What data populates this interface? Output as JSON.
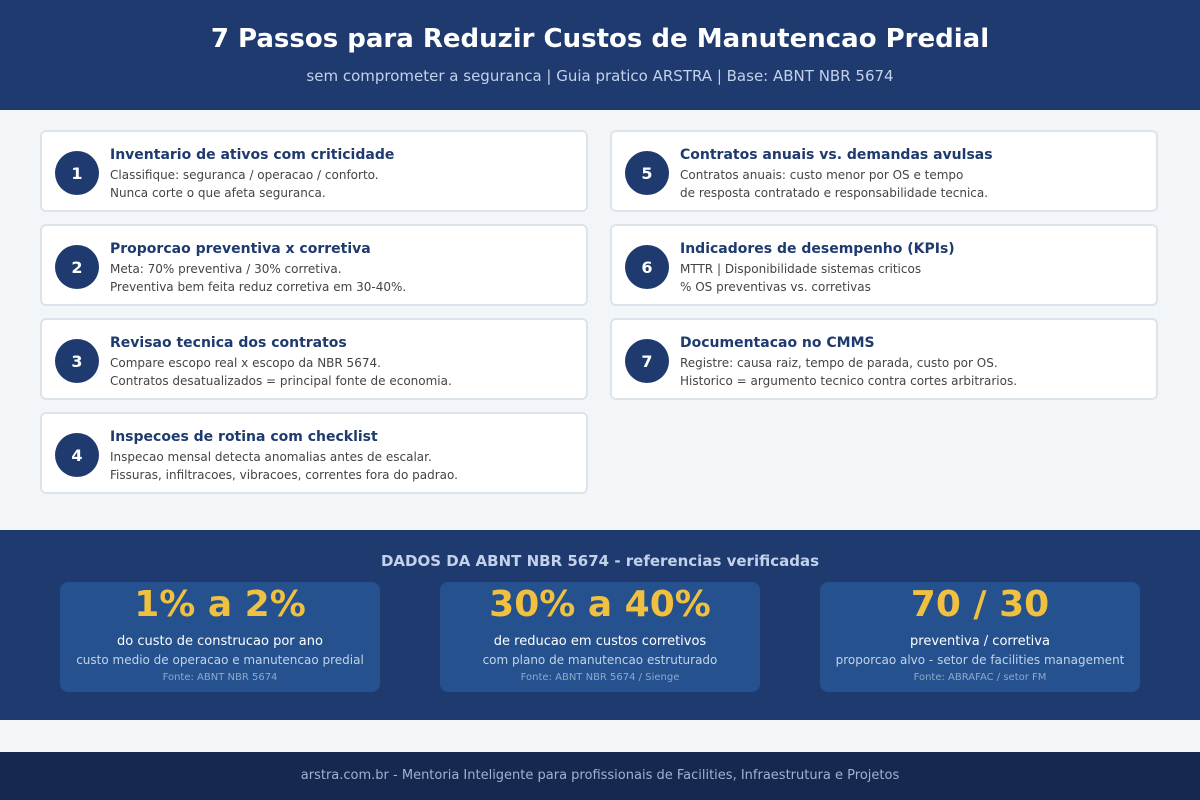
{
  "header": {
    "title": "7 Passos para Reduzir Custos de Manutencao Predial",
    "subtitle": "sem comprometer a seguranca | Guia pratico ARSTRA | Base: ABNT NBR 5674"
  },
  "steps": [
    {
      "number": "1",
      "title": "Inventario de ativos com criticidade",
      "lines": [
        "Classifique: seguranca / operacao / conforto.",
        "Nunca corte o que afeta seguranca."
      ]
    },
    {
      "number": "2",
      "title": "Proporcao preventiva x corretiva",
      "lines": [
        "Meta: 70% preventiva / 30% corretiva.",
        "Preventiva bem feita reduz corretiva em 30-40%."
      ]
    },
    {
      "number": "3",
      "title": "Revisao tecnica dos contratos",
      "lines": [
        "Compare escopo real x escopo da NBR 5674.",
        "Contratos desatualizados = principal fonte de economia."
      ]
    },
    {
      "number": "4",
      "title": "Inspecoes de rotina com checklist",
      "lines": [
        "Inspecao mensal detecta anomalias antes de escalar.",
        "Fissuras, infiltracoes, vibracoes, correntes fora do padrao."
      ]
    },
    {
      "number": "5",
      "title": "Contratos anuais vs. demandas avulsas",
      "lines": [
        "Contratos anuais: custo menor por OS e tempo",
        "de resposta contratado e responsabilidade tecnica."
      ]
    },
    {
      "number": "6",
      "title": "Indicadores de desempenho (KPIs)",
      "lines": [
        "MTTR | Disponibilidade sistemas criticos",
        "% OS preventivas vs. corretivas"
      ]
    },
    {
      "number": "7",
      "title": "Documentacao no CMMS",
      "lines": [
        "Registre: causa raiz, tempo de parada, custo por OS.",
        "Historico = argumento tecnico contra cortes arbitrarios."
      ]
    }
  ],
  "data_section": {
    "title": "DADOS DA ABNT NBR 5674 - referencias verificadas",
    "cards": [
      {
        "value": "1% a 2%",
        "label": "do custo de construcao por ano",
        "detail": "custo medio de operacao e manutencao predial",
        "source": "Fonte: ABNT NBR 5674"
      },
      {
        "value": "30% a 40%",
        "label": "de reducao em custos corretivos",
        "detail": "com plano de manutencao estruturado",
        "source": "Fonte: ABNT NBR 5674 / Sienge"
      },
      {
        "value": "70 / 30",
        "label": "preventiva / corretiva",
        "detail": "proporcao alvo - setor de facilities management",
        "source": "Fonte: ABRAFAC / setor FM"
      }
    ]
  },
  "footer": {
    "text": "arstra.com.br - Mentoria Inteligente para profissionais de Facilities, Infraestrutura e Projetos"
  }
}
